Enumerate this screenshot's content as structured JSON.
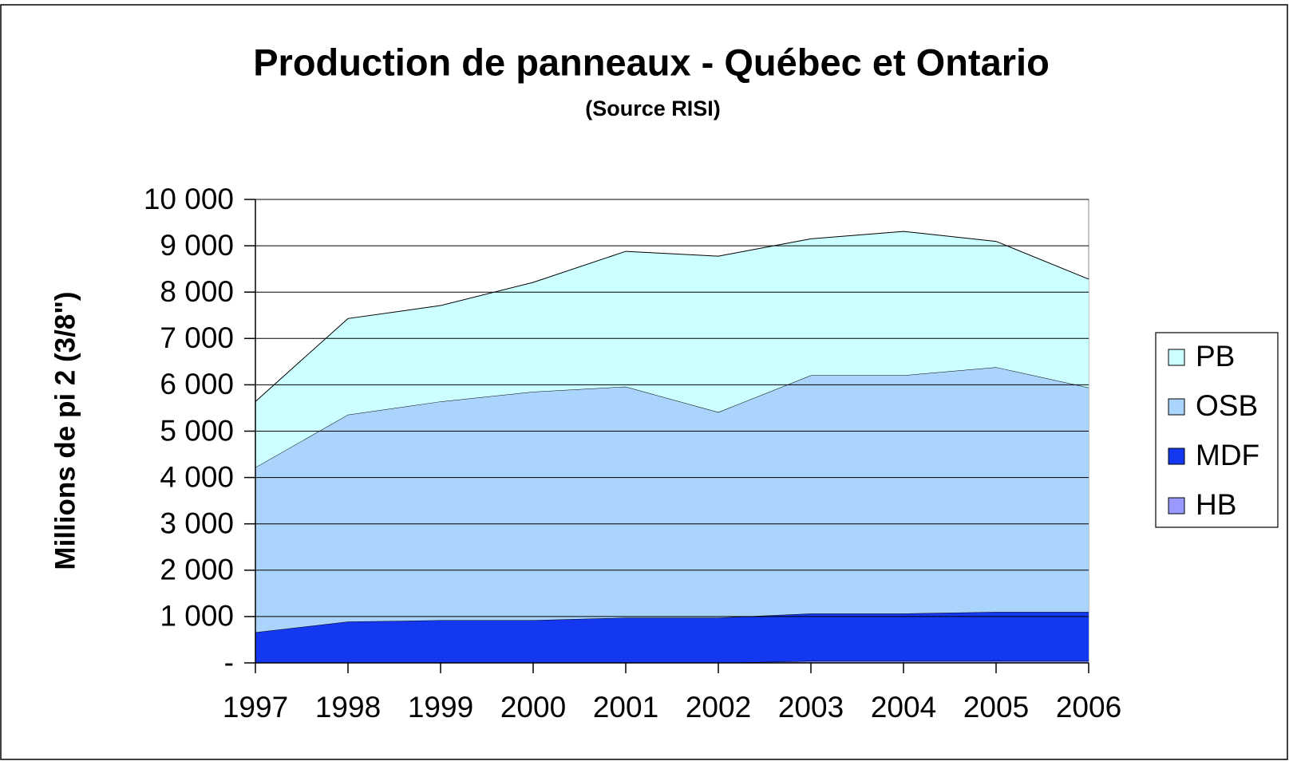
{
  "chart_data": {
    "type": "stacked_area",
    "title": "Production de panneaux - Québec et Ontario",
    "subtitle": "(Source RISI)",
    "y_label": "Millions de pi 2 (3/8\")",
    "categories": [
      "1997",
      "1998",
      "1999",
      "2000",
      "2001",
      "2002",
      "2003",
      "2004",
      "2005",
      "2006"
    ],
    "series": [
      {
        "name": "HB",
        "color": "#9999ff",
        "values": [
          0,
          0,
          0,
          0,
          0,
          0,
          40,
          40,
          40,
          40
        ]
      },
      {
        "name": "MDF",
        "color": "#1438f0",
        "values": [
          660,
          890,
          920,
          920,
          975,
          975,
          1025,
          1025,
          1060,
          1060
        ]
      },
      {
        "name": "OSB",
        "color": "#aad4fc",
        "values": [
          3560,
          4465,
          4720,
          4930,
          4985,
          4435,
          5140,
          5140,
          5280,
          4840
        ]
      },
      {
        "name": "PB",
        "color": "#ccffff",
        "values": [
          1420,
          2075,
          2070,
          2360,
          2920,
          3365,
          2945,
          3105,
          2715,
          2340
        ]
      }
    ],
    "ylim": [
      0,
      10000
    ],
    "yticks": [
      {
        "value": 0,
        "label": "-"
      },
      {
        "value": 1000,
        "label": "1 000"
      },
      {
        "value": 2000,
        "label": "2 000"
      },
      {
        "value": 3000,
        "label": "3 000"
      },
      {
        "value": 4000,
        "label": "4 000"
      },
      {
        "value": 5000,
        "label": "5 000"
      },
      {
        "value": 6000,
        "label": "6 000"
      },
      {
        "value": 7000,
        "label": "7 000"
      },
      {
        "value": 8000,
        "label": "8 000"
      },
      {
        "value": 9000,
        "label": "9 000"
      },
      {
        "value": 10000,
        "label": "10 000"
      }
    ],
    "grid": true,
    "legend": "right"
  }
}
